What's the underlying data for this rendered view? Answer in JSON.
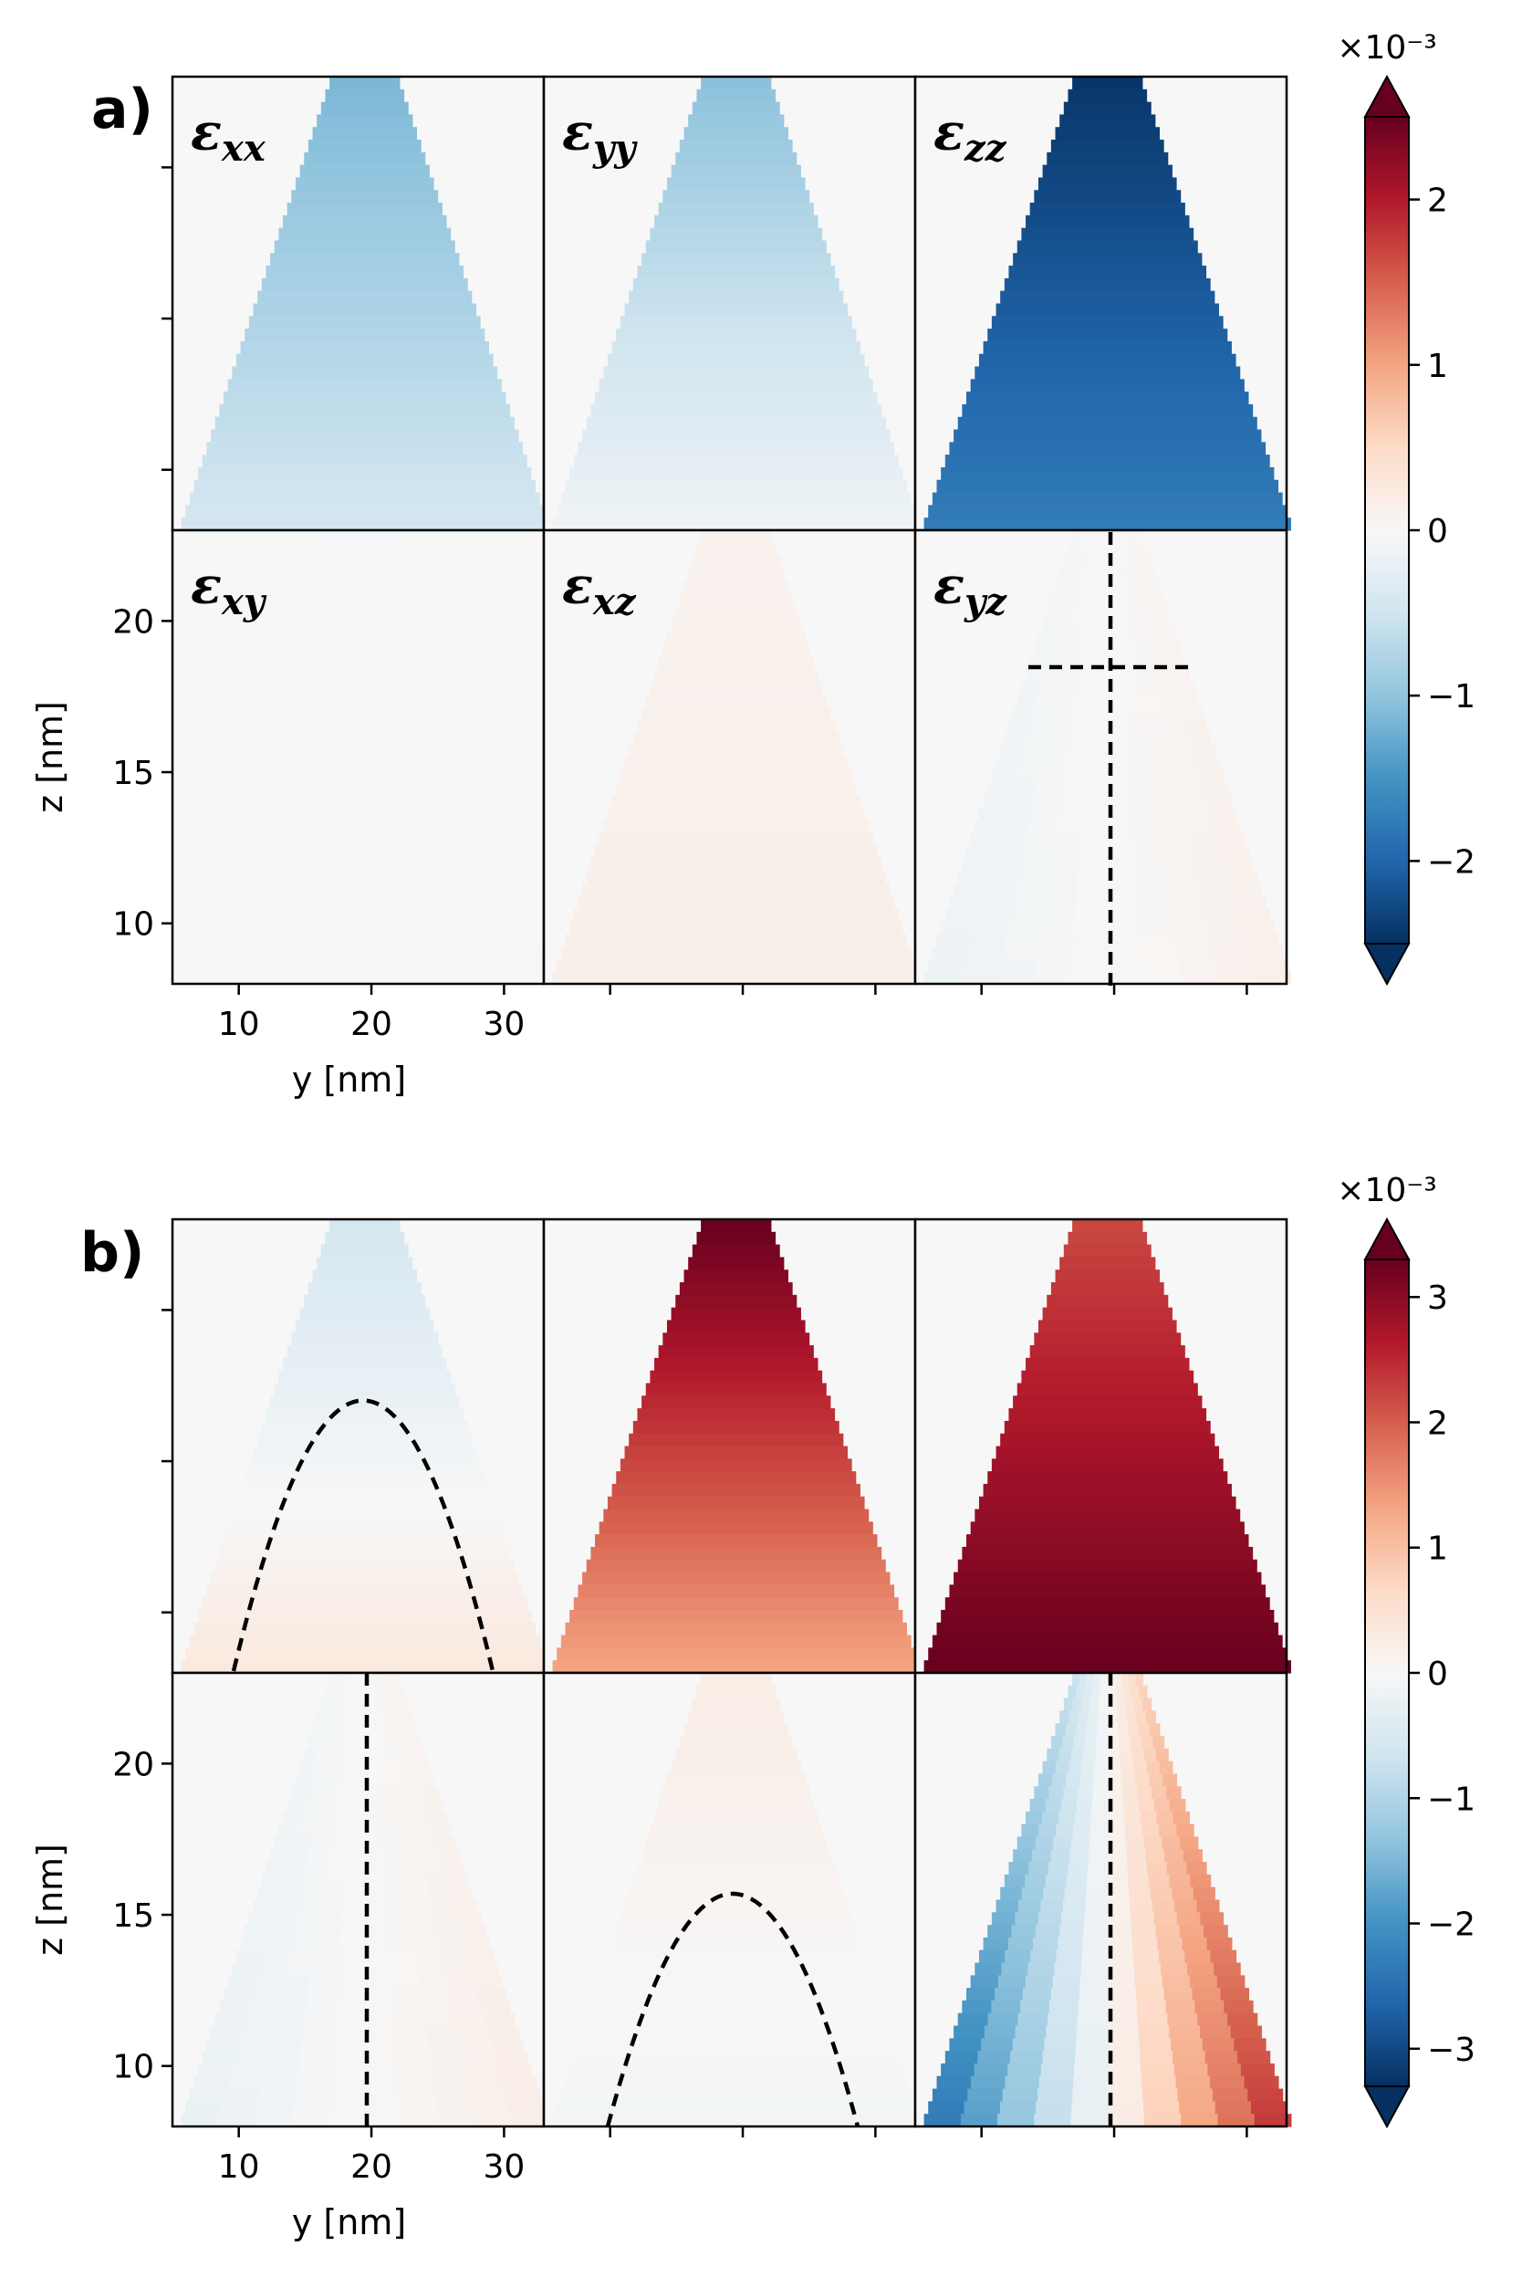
{
  "chart_data": {
    "type": "heatmap",
    "colormap": "RdBu_r (blue negative, red positive)",
    "background_color": "#f7f7f7",
    "figures": [
      {
        "panel": "a)",
        "colorbar": {
          "exponent_label": "×10⁻³",
          "range": [
            -2.5,
            2.5
          ],
          "ticks": [
            -2,
            -1,
            0,
            1,
            2
          ],
          "tick_labels": [
            "−2",
            "−1",
            "0",
            "1",
            "2"
          ],
          "extend": "both"
        },
        "subplots": [
          {
            "component": "xx",
            "label": "ε",
            "sub": "xx",
            "grid_row": 0,
            "grid_col": 0,
            "top_value": -1.15,
            "base_value": -0.45,
            "center_offset": 0.0,
            "lr_gradient": 0.0
          },
          {
            "component": "yy",
            "label": "ε",
            "sub": "yy",
            "grid_row": 0,
            "grid_col": 1,
            "top_value": -1.05,
            "base_value": -0.1,
            "center_offset": 0.0,
            "lr_gradient": 0.0
          },
          {
            "component": "zz",
            "label": "ε",
            "sub": "zz",
            "grid_row": 0,
            "grid_col": 2,
            "top_value": -2.45,
            "base_value": -1.75,
            "center_offset": 0.0,
            "lr_gradient": 0.0
          },
          {
            "component": "xy",
            "label": "ε",
            "sub": "xy",
            "grid_row": 1,
            "grid_col": 0,
            "top_value": -0.02,
            "base_value": -0.03,
            "center_offset": 0.0,
            "lr_gradient": 0.0
          },
          {
            "component": "xz",
            "label": "ε",
            "sub": "xz",
            "grid_row": 1,
            "grid_col": 1,
            "top_value": 0.1,
            "base_value": 0.15,
            "center_offset": 0.0,
            "lr_gradient": 0.0
          },
          {
            "component": "yz",
            "label": "ε",
            "sub": "yz",
            "grid_row": 1,
            "grid_col": 2,
            "top_value": 0.0,
            "base_value": 0.0,
            "center_offset": 0.0,
            "lr_gradient": 0.15
          }
        ]
      },
      {
        "panel": "b)",
        "colorbar": {
          "exponent_label": "×10⁻³",
          "range": [
            -3.3,
            3.3
          ],
          "ticks": [
            -3,
            -2,
            -1,
            0,
            1,
            2,
            3
          ],
          "tick_labels": [
            "−3",
            "−2",
            "−1",
            "0",
            "1",
            "2",
            "3"
          ],
          "extend": "both"
        },
        "subplots": [
          {
            "component": "xx",
            "grid_row": 0,
            "grid_col": 0,
            "top_value": -0.6,
            "base_value": 0.35,
            "center_offset": 0.0,
            "lr_gradient": 0.0
          },
          {
            "component": "yy",
            "grid_row": 0,
            "grid_col": 1,
            "top_value": 3.3,
            "base_value": 1.3,
            "center_offset": 0.0,
            "lr_gradient": 0.0
          },
          {
            "component": "zz",
            "grid_row": 0,
            "grid_col": 2,
            "top_value": 2.2,
            "base_value": 3.3,
            "center_offset": 0.0,
            "lr_gradient": 0.0
          },
          {
            "component": "xy",
            "grid_row": 1,
            "grid_col": 0,
            "top_value": 0.0,
            "base_value": 0.0,
            "center_offset": 0.0,
            "lr_gradient": 0.25
          },
          {
            "component": "xz",
            "grid_row": 1,
            "grid_col": 1,
            "top_value": 0.25,
            "base_value": -0.1,
            "center_offset": 0.0,
            "lr_gradient": 0.0
          },
          {
            "component": "yz",
            "grid_row": 1,
            "grid_col": 2,
            "top_value": 0.0,
            "base_value": 0.0,
            "center_offset": 0.0,
            "lr_gradient": 2.6
          }
        ]
      }
    ],
    "x_axis": {
      "label": "y [nm]",
      "range": [
        5,
        33
      ],
      "ticks": [
        10,
        20,
        30
      ],
      "tick_labels": [
        "10",
        "20",
        "30"
      ]
    },
    "y_axis": {
      "label": "z [nm]",
      "range": [
        8,
        23
      ],
      "ticks": [
        10,
        15,
        20
      ],
      "tick_labels": [
        "10",
        "15",
        "20"
      ]
    },
    "tip_shape": {
      "apex_width_nm": 5,
      "apex_z_nm": 23,
      "base_z_nm": 8,
      "base_width_nm": 28,
      "center_y_nm": 19.5
    }
  }
}
